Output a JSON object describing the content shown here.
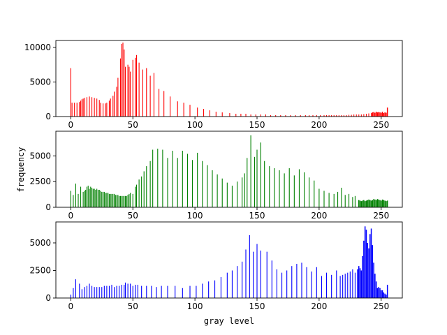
{
  "figure": {
    "ylabel": "frequency",
    "xlabel": "gray level"
  },
  "chart_data": [
    {
      "type": "bar",
      "name": "red",
      "color": "#ff0000",
      "xlim": [
        -12,
        267
      ],
      "ylim": [
        0,
        11000
      ],
      "xticks": [
        0,
        50,
        100,
        150,
        200,
        250
      ],
      "yticks": [
        0,
        5000,
        10000
      ],
      "sparse_range": [
        0,
        250
      ],
      "sparse_bars": [
        [
          0,
          7000
        ],
        [
          1,
          2000
        ],
        [
          3,
          2000
        ],
        [
          5,
          2000
        ],
        [
          7,
          2100
        ],
        [
          8,
          2300
        ],
        [
          9,
          2500
        ],
        [
          10,
          2600
        ],
        [
          11,
          2700
        ],
        [
          13,
          2800
        ],
        [
          15,
          2900
        ],
        [
          17,
          2800
        ],
        [
          19,
          2700
        ],
        [
          21,
          2600
        ],
        [
          23,
          2400
        ],
        [
          24,
          2000
        ],
        [
          26,
          1900
        ],
        [
          28,
          1900
        ],
        [
          29,
          2000
        ],
        [
          31,
          2300
        ],
        [
          32,
          2600
        ],
        [
          34,
          3000
        ],
        [
          35,
          3600
        ],
        [
          37,
          4300
        ],
        [
          38,
          5600
        ],
        [
          40,
          8400
        ],
        [
          41,
          10500
        ],
        [
          42,
          10700
        ],
        [
          43,
          9700
        ],
        [
          44,
          7200
        ],
        [
          46,
          7500
        ],
        [
          47,
          7200
        ],
        [
          48,
          6500
        ],
        [
          50,
          8200
        ],
        [
          52,
          8500
        ],
        [
          53,
          8900
        ],
        [
          55,
          7800
        ],
        [
          58,
          6800
        ],
        [
          61,
          7000
        ],
        [
          64,
          5900
        ],
        [
          67,
          6300
        ],
        [
          71,
          4000
        ],
        [
          75,
          3700
        ],
        [
          80,
          2900
        ],
        [
          86,
          2200
        ],
        [
          91,
          2000
        ],
        [
          96,
          1700
        ],
        [
          102,
          1300
        ],
        [
          107,
          1100
        ],
        [
          112,
          900
        ],
        [
          117,
          700
        ],
        [
          122,
          600
        ],
        [
          128,
          500
        ],
        [
          133,
          400
        ],
        [
          137,
          400
        ],
        [
          141,
          400
        ],
        [
          145,
          300
        ],
        [
          149,
          300
        ],
        [
          153,
          300
        ],
        [
          157,
          300
        ],
        [
          161,
          200
        ],
        [
          165,
          200
        ],
        [
          169,
          200
        ],
        [
          173,
          200
        ],
        [
          177,
          200
        ],
        [
          181,
          200
        ],
        [
          185,
          200
        ],
        [
          189,
          200
        ],
        [
          192,
          200
        ],
        [
          195,
          200
        ],
        [
          198,
          200
        ],
        [
          201,
          200
        ],
        [
          204,
          200
        ],
        [
          206,
          200
        ],
        [
          208,
          200
        ],
        [
          210,
          200
        ],
        [
          212,
          200
        ],
        [
          214,
          200
        ],
        [
          216,
          200
        ],
        [
          218,
          200
        ],
        [
          220,
          200
        ],
        [
          222,
          200
        ],
        [
          224,
          250
        ],
        [
          226,
          250
        ],
        [
          228,
          300
        ],
        [
          230,
          300
        ],
        [
          232,
          300
        ],
        [
          234,
          300
        ],
        [
          236,
          350
        ],
        [
          238,
          400
        ],
        [
          240,
          450
        ],
        [
          242,
          500
        ]
      ],
      "dense_range": [
        243,
        255
      ],
      "dense_values": [
        600,
        650,
        550,
        700,
        600,
        650,
        600,
        550,
        700,
        500,
        600,
        550,
        1300
      ]
    },
    {
      "type": "bar",
      "name": "green",
      "color": "#008000",
      "xlim": [
        -12,
        267
      ],
      "ylim": [
        0,
        7400
      ],
      "xticks": [
        0,
        50,
        100,
        150,
        200,
        250
      ],
      "yticks": [
        0,
        2500,
        5000
      ],
      "sparse_range": [
        0,
        231
      ],
      "sparse_bars": [
        [
          0,
          1600
        ],
        [
          2,
          1200
        ],
        [
          4,
          2300
        ],
        [
          6,
          1300
        ],
        [
          8,
          2000
        ],
        [
          10,
          1500
        ],
        [
          11,
          1600
        ],
        [
          12,
          1700
        ],
        [
          13,
          2000
        ],
        [
          14,
          2100
        ],
        [
          15,
          1800
        ],
        [
          16,
          2000
        ],
        [
          17,
          1900
        ],
        [
          18,
          1800
        ],
        [
          19,
          1800
        ],
        [
          20,
          1700
        ],
        [
          21,
          1800
        ],
        [
          22,
          1700
        ],
        [
          23,
          1700
        ],
        [
          24,
          1600
        ],
        [
          25,
          1500
        ],
        [
          26,
          1500
        ],
        [
          27,
          1500
        ],
        [
          28,
          1400
        ],
        [
          29,
          1400
        ],
        [
          30,
          1400
        ],
        [
          31,
          1300
        ],
        [
          32,
          1300
        ],
        [
          33,
          1300
        ],
        [
          34,
          1300
        ],
        [
          35,
          1300
        ],
        [
          36,
          1200
        ],
        [
          37,
          1200
        ],
        [
          38,
          1200
        ],
        [
          39,
          1100
        ],
        [
          40,
          1100
        ],
        [
          41,
          1100
        ],
        [
          42,
          1100
        ],
        [
          43,
          1100
        ],
        [
          44,
          1100
        ],
        [
          45,
          1100
        ],
        [
          46,
          1200
        ],
        [
          47,
          1300
        ],
        [
          48,
          1400
        ],
        [
          50,
          1300
        ],
        [
          52,
          2000
        ],
        [
          53,
          2200
        ],
        [
          55,
          2700
        ],
        [
          57,
          3000
        ],
        [
          59,
          3500
        ],
        [
          61,
          4000
        ],
        [
          64,
          4500
        ],
        [
          66,
          5600
        ],
        [
          70,
          5700
        ],
        [
          74,
          5600
        ],
        [
          78,
          4800
        ],
        [
          82,
          5500
        ],
        [
          86,
          4800
        ],
        [
          90,
          5500
        ],
        [
          94,
          5200
        ],
        [
          98,
          4600
        ],
        [
          102,
          5300
        ],
        [
          106,
          4500
        ],
        [
          110,
          4100
        ],
        [
          114,
          3600
        ],
        [
          118,
          3200
        ],
        [
          122,
          2800
        ],
        [
          126,
          2400
        ],
        [
          130,
          2100
        ],
        [
          134,
          2500
        ],
        [
          138,
          2900
        ],
        [
          140,
          3300
        ],
        [
          142,
          4800
        ],
        [
          145,
          7000
        ],
        [
          148,
          4900
        ],
        [
          150,
          5600
        ],
        [
          153,
          6300
        ],
        [
          156,
          4500
        ],
        [
          160,
          4000
        ],
        [
          164,
          3800
        ],
        [
          168,
          3600
        ],
        [
          172,
          3300
        ],
        [
          176,
          3800
        ],
        [
          180,
          3100
        ],
        [
          184,
          3700
        ],
        [
          188,
          3400
        ],
        [
          192,
          2900
        ],
        [
          196,
          2600
        ],
        [
          200,
          1800
        ],
        [
          204,
          1600
        ],
        [
          208,
          1400
        ],
        [
          212,
          1300
        ],
        [
          215,
          1500
        ],
        [
          218,
          1900
        ],
        [
          221,
          1200
        ],
        [
          224,
          1300
        ],
        [
          227,
          1000
        ],
        [
          229,
          1100
        ]
      ],
      "dense_range": [
        232,
        255
      ],
      "dense_values": [
        700,
        650,
        600,
        650,
        700,
        600,
        650,
        700,
        750,
        700,
        650,
        700,
        800,
        750,
        700,
        800,
        750,
        700,
        650,
        750,
        700,
        650,
        600,
        650
      ]
    },
    {
      "type": "bar",
      "name": "blue",
      "color": "#0000ff",
      "xlim": [
        -12,
        267
      ],
      "ylim": [
        0,
        6900
      ],
      "xticks": [
        0,
        50,
        100,
        150,
        200,
        250
      ],
      "yticks": [
        0,
        2500,
        5000
      ],
      "sparse_range": [
        0,
        230
      ],
      "sparse_bars": [
        [
          0,
          300
        ],
        [
          2,
          900
        ],
        [
          4,
          1700
        ],
        [
          7,
          1300
        ],
        [
          9,
          800
        ],
        [
          11,
          1000
        ],
        [
          13,
          1100
        ],
        [
          15,
          1300
        ],
        [
          17,
          1100
        ],
        [
          19,
          1000
        ],
        [
          21,
          1000
        ],
        [
          23,
          1000
        ],
        [
          25,
          1000
        ],
        [
          27,
          1100
        ],
        [
          29,
          1100
        ],
        [
          31,
          1100
        ],
        [
          33,
          1200
        ],
        [
          35,
          1000
        ],
        [
          37,
          1100
        ],
        [
          39,
          1100
        ],
        [
          41,
          1200
        ],
        [
          43,
          1200
        ],
        [
          44,
          1400
        ],
        [
          46,
          1300
        ],
        [
          48,
          1300
        ],
        [
          50,
          1100
        ],
        [
          52,
          1200
        ],
        [
          54,
          1200
        ],
        [
          57,
          1100
        ],
        [
          61,
          1100
        ],
        [
          65,
          1100
        ],
        [
          69,
          1000
        ],
        [
          73,
          1100
        ],
        [
          78,
          1100
        ],
        [
          84,
          1100
        ],
        [
          90,
          900
        ],
        [
          96,
          1100
        ],
        [
          101,
          1100
        ],
        [
          106,
          1300
        ],
        [
          111,
          1500
        ],
        [
          116,
          1600
        ],
        [
          121,
          1900
        ],
        [
          126,
          2300
        ],
        [
          130,
          2500
        ],
        [
          134,
          2900
        ],
        [
          138,
          3300
        ],
        [
          141,
          4400
        ],
        [
          144,
          5700
        ],
        [
          147,
          4200
        ],
        [
          150,
          4900
        ],
        [
          153,
          4300
        ],
        [
          158,
          4200
        ],
        [
          162,
          3400
        ],
        [
          166,
          2600
        ],
        [
          170,
          2300
        ],
        [
          174,
          2500
        ],
        [
          178,
          2900
        ],
        [
          182,
          3100
        ],
        [
          186,
          3200
        ],
        [
          190,
          2800
        ],
        [
          194,
          2400
        ],
        [
          198,
          2800
        ],
        [
          202,
          2000
        ],
        [
          206,
          2300
        ],
        [
          210,
          2100
        ],
        [
          214,
          2500
        ],
        [
          217,
          2000
        ],
        [
          219,
          2100
        ],
        [
          221,
          2200
        ],
        [
          223,
          2300
        ],
        [
          225,
          2400
        ],
        [
          227,
          2600
        ],
        [
          229,
          2300
        ]
      ],
      "dense_range": [
        231,
        255
      ],
      "dense_values": [
        2600,
        2900,
        2700,
        2500,
        3800,
        5200,
        6500,
        6200,
        5000,
        4500,
        5800,
        6300,
        4800,
        3200,
        2200,
        1500,
        900,
        1000,
        900,
        700,
        700,
        500,
        400,
        300,
        1200
      ]
    }
  ]
}
